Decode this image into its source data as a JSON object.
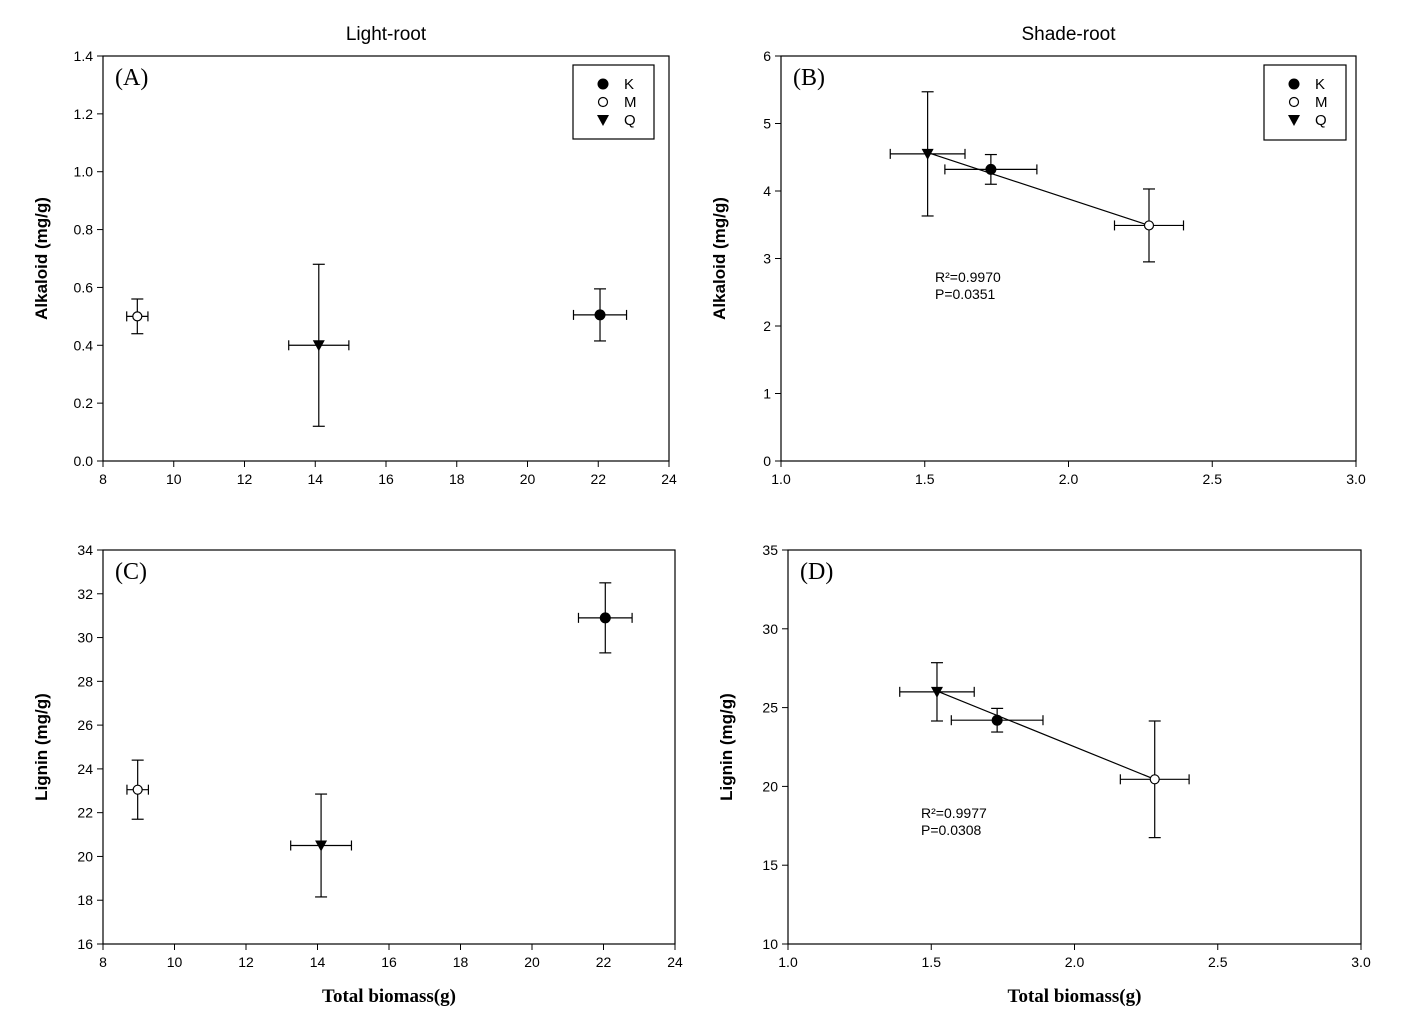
{
  "chart_data": [
    {
      "type": "scatter",
      "panel_label": "(A)",
      "title": "Light-root",
      "xlabel": "",
      "ylabel": "Alkaloid (mg/g)",
      "xlim": [
        8,
        24
      ],
      "xticks": [
        8,
        10,
        12,
        14,
        16,
        18,
        20,
        22,
        24
      ],
      "xtick_decimals": 0,
      "ylim": [
        0,
        1.4
      ],
      "yticks": [
        0,
        0.2,
        0.4,
        0.6,
        0.8,
        1.0,
        1.2,
        1.4
      ],
      "ytick_decimals": 1,
      "legend": {
        "placement": "top-right",
        "entries": [
          {
            "name": "K",
            "marker": "filled-circle"
          },
          {
            "name": "M",
            "marker": "open-circle"
          },
          {
            "name": "Q",
            "marker": "filled-triangle-down"
          }
        ]
      },
      "points": [
        {
          "name": "M",
          "x": 8.97,
          "y": 0.5,
          "xerr": 0.3,
          "yerr": 0.06
        },
        {
          "name": "Q",
          "x": 14.1,
          "y": 0.4,
          "xerr": 0.85,
          "yerr": 0.28
        },
        {
          "name": "K",
          "x": 22.05,
          "y": 0.505,
          "xerr": 0.75,
          "yerr": 0.09
        }
      ],
      "annotations": []
    },
    {
      "type": "scatter",
      "panel_label": "(B)",
      "title": "Shade-root",
      "xlabel": "",
      "ylabel": "Alkaloid (mg/g)",
      "xlim": [
        1.0,
        3.0
      ],
      "xticks": [
        1.0,
        1.5,
        2.0,
        2.5,
        3.0
      ],
      "xtick_decimals": 1,
      "ylim": [
        0,
        6
      ],
      "yticks": [
        0,
        1,
        2,
        3,
        4,
        5,
        6
      ],
      "ytick_decimals": 0,
      "legend": {
        "placement": "top-right",
        "entries": [
          {
            "name": "K",
            "marker": "filled-circle"
          },
          {
            "name": "M",
            "marker": "open-circle"
          },
          {
            "name": "Q",
            "marker": "filled-triangle-down"
          }
        ]
      },
      "points": [
        {
          "name": "Q",
          "x": 1.51,
          "y": 4.55,
          "xerr": 0.13,
          "yerr": 0.92
        },
        {
          "name": "K",
          "x": 1.73,
          "y": 4.32,
          "xerr": 0.16,
          "yerr": 0.22
        },
        {
          "name": "M",
          "x": 2.28,
          "y": 3.49,
          "xerr": 0.12,
          "yerr": 0.54
        }
      ],
      "fit_line": {
        "x": [
          1.51,
          2.28
        ],
        "y": [
          4.57,
          3.49
        ]
      },
      "annotations": [
        "R²=0.9970",
        "P=0.0351"
      ]
    },
    {
      "type": "scatter",
      "panel_label": "(C)",
      "title": "",
      "xlabel": "Total biomass(g)",
      "ylabel": "Lignin (mg/g)",
      "xlim": [
        8,
        24
      ],
      "xticks": [
        8,
        10,
        12,
        14,
        16,
        18,
        20,
        22,
        24
      ],
      "xtick_decimals": 0,
      "ylim": [
        16,
        34
      ],
      "yticks": [
        16,
        18,
        20,
        22,
        24,
        26,
        28,
        30,
        32,
        34
      ],
      "ytick_decimals": 0,
      "points": [
        {
          "name": "M",
          "x": 8.97,
          "y": 23.05,
          "xerr": 0.3,
          "yerr": 1.35
        },
        {
          "name": "Q",
          "x": 14.1,
          "y": 20.5,
          "xerr": 0.85,
          "yerr": 2.35
        },
        {
          "name": "K",
          "x": 22.05,
          "y": 30.9,
          "xerr": 0.75,
          "yerr": 1.6
        }
      ],
      "annotations": []
    },
    {
      "type": "scatter",
      "panel_label": "(D)",
      "title": "",
      "xlabel": "Total biomass(g)",
      "ylabel": "Lignin (mg/g)",
      "xlim": [
        1.0,
        3.0
      ],
      "xticks": [
        1.0,
        1.5,
        2.0,
        2.5,
        3.0
      ],
      "xtick_decimals": 1,
      "ylim": [
        10,
        35
      ],
      "yticks": [
        10,
        15,
        20,
        25,
        30,
        35
      ],
      "ytick_decimals": 0,
      "points": [
        {
          "name": "Q",
          "x": 1.52,
          "y": 26.0,
          "xerr": 0.13,
          "yerr": 1.85
        },
        {
          "name": "K",
          "x": 1.73,
          "y": 24.2,
          "xerr": 0.16,
          "yerr": 0.75
        },
        {
          "name": "M",
          "x": 2.28,
          "y": 20.45,
          "xerr": 0.12,
          "yerr": 3.7
        }
      ],
      "fit_line": {
        "x": [
          1.52,
          2.28
        ],
        "y": [
          26.05,
          20.45
        ]
      },
      "annotations": [
        "R²=0.9977",
        "P=0.0308"
      ]
    }
  ]
}
